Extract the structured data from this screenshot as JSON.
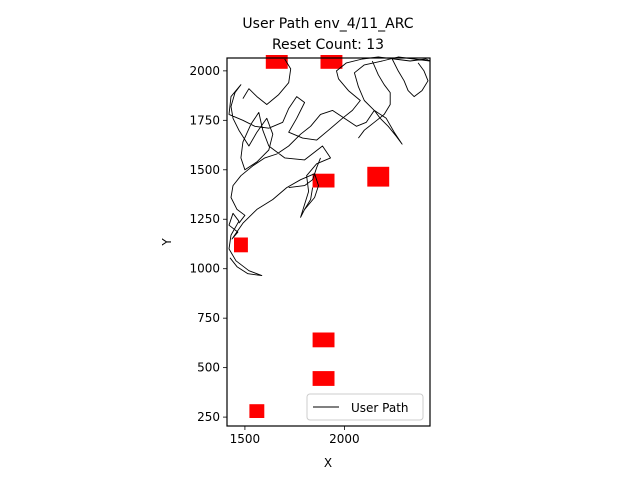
{
  "chart_data": {
    "type": "line",
    "title_line1": "User Path env_4/11_ARC",
    "title_line2": "Reset Count: 13",
    "xlabel": "X",
    "ylabel": "Y",
    "xlim": [
      1410,
      2430
    ],
    "ylim": [
      205,
      2065
    ],
    "x_ticks": [
      1500,
      2000
    ],
    "y_ticks": [
      250,
      500,
      750,
      1000,
      1250,
      1500,
      1750,
      2000
    ],
    "legend": {
      "label": "User Path",
      "placement": "lower-right"
    },
    "colors": {
      "path": "#000000",
      "obstacle": "#ff0000"
    },
    "series": [
      {
        "name": "User Path",
        "strokes": [
          [
            [
              1425,
              1055
            ],
            [
              1460,
              1010
            ],
            [
              1515,
              975
            ],
            [
              1585,
              965
            ],
            [
              1520,
              990
            ],
            [
              1455,
              1040
            ],
            [
              1420,
              1100
            ],
            [
              1430,
              1170
            ],
            [
              1470,
              1240
            ],
            [
              1440,
              1280
            ],
            [
              1420,
              1220
            ],
            [
              1465,
              1185
            ],
            [
              1435,
              1150
            ],
            [
              1490,
              1230
            ],
            [
              1560,
              1300
            ],
            [
              1640,
              1350
            ],
            [
              1710,
              1410
            ],
            [
              1780,
              1450
            ],
            [
              1850,
              1480
            ],
            [
              1870,
              1420
            ],
            [
              1850,
              1360
            ],
            [
              1800,
              1300
            ],
            [
              1780,
              1260
            ],
            [
              1820,
              1390
            ],
            [
              1810,
              1470
            ],
            [
              1860,
              1530
            ],
            [
              1930,
              1560
            ],
            [
              1890,
              1620
            ],
            [
              1800,
              1550
            ],
            [
              1700,
              1560
            ],
            [
              1620,
              1620
            ],
            [
              1590,
              1700
            ],
            [
              1570,
              1790
            ],
            [
              1530,
              1730
            ],
            [
              1490,
              1640
            ],
            [
              1480,
              1560
            ],
            [
              1500,
              1500
            ],
            [
              1560,
              1540
            ],
            [
              1620,
              1600
            ],
            [
              1640,
              1680
            ],
            [
              1610,
              1760
            ],
            [
              1560,
              1690
            ],
            [
              1520,
              1620
            ],
            [
              1470,
              1700
            ],
            [
              1440,
              1760
            ],
            [
              1430,
              1820
            ],
            [
              1450,
              1890
            ],
            [
              1480,
              1930
            ],
            [
              1430,
              1870
            ],
            [
              1420,
              1780
            ],
            [
              1490,
              1750
            ],
            [
              1550,
              1720
            ],
            [
              1620,
              1710
            ],
            [
              1690,
              1740
            ],
            [
              1720,
              1810
            ],
            [
              1760,
              1870
            ],
            [
              1800,
              1840
            ],
            [
              1760,
              1760
            ],
            [
              1720,
              1690
            ],
            [
              1790,
              1660
            ],
            [
              1860,
              1650
            ],
            [
              1920,
              1700
            ],
            [
              1990,
              1760
            ],
            [
              2040,
              1800
            ],
            [
              2080,
              1850
            ],
            [
              2020,
              1900
            ],
            [
              1970,
              1960
            ],
            [
              1960,
              2000
            ],
            [
              2010,
              2040
            ],
            [
              2090,
              2060
            ],
            [
              2170,
              2070
            ],
            [
              2250,
              2060
            ],
            [
              2330,
              2050
            ],
            [
              2410,
              2060
            ],
            [
              2430,
              2050
            ],
            [
              2350,
              2060
            ],
            [
              2270,
              2070
            ],
            [
              2190,
              2050
            ],
            [
              2100,
              2030
            ],
            [
              2050,
              1990
            ],
            [
              2070,
              1920
            ],
            [
              2100,
              1850
            ],
            [
              2150,
              1800
            ],
            [
              2180,
              1760
            ],
            [
              2220,
              1720
            ],
            [
              2260,
              1670
            ],
            [
              2290,
              1630
            ],
            [
              2250,
              1690
            ],
            [
              2210,
              1760
            ],
            [
              2150,
              1800
            ],
            [
              2110,
              1740
            ],
            [
              2060,
              1720
            ],
            [
              2000,
              1760
            ],
            [
              1940,
              1800
            ],
            [
              1880,
              1780
            ],
            [
              1830,
              1720
            ],
            [
              1780,
              1680
            ],
            [
              1720,
              1620
            ],
            [
              1660,
              1580
            ],
            [
              1600,
              1560
            ],
            [
              1540,
              1520
            ],
            [
              1480,
              1470
            ],
            [
              1440,
              1420
            ],
            [
              1430,
              1360
            ],
            [
              1460,
              1300
            ],
            [
              1500,
              1270
            ],
            [
              1470,
              1230
            ]
          ],
          [
            [
              1700,
              2060
            ],
            [
              1730,
              2010
            ],
            [
              1720,
              1940
            ],
            [
              1670,
              1880
            ],
            [
              1610,
              1830
            ],
            [
              1560,
              1870
            ],
            [
              1520,
              1910
            ],
            [
              1490,
              1860
            ]
          ],
          [
            [
              1720,
              1410
            ],
            [
              1800,
              1420
            ],
            [
              1840,
              1450
            ],
            [
              1860,
              1510
            ],
            [
              1880,
              1560
            ]
          ],
          [
            [
              1840,
              1410
            ],
            [
              1830,
              1350
            ],
            [
              1800,
              1300
            ]
          ],
          [
            [
              2140,
              2050
            ],
            [
              2170,
              1980
            ],
            [
              2200,
              1930
            ],
            [
              2230,
              1890
            ],
            [
              2230,
              1830
            ],
            [
              2200,
              1780
            ],
            [
              2150,
              1740
            ],
            [
              2100,
              1700
            ],
            [
              2070,
              1660
            ]
          ],
          [
            [
              2240,
              2060
            ],
            [
              2270,
              2000
            ],
            [
              2300,
              1950
            ],
            [
              2320,
              1900
            ],
            [
              2350,
              1870
            ],
            [
              2390,
              1900
            ],
            [
              2420,
              1950
            ],
            [
              2400,
              2000
            ],
            [
              2370,
              2040
            ]
          ]
        ]
      }
    ],
    "obstacles": [
      {
        "x": 1660,
        "y": 2045,
        "w": 110,
        "h": 70
      },
      {
        "x": 1935,
        "y": 2045,
        "w": 110,
        "h": 70
      },
      {
        "x": 2170,
        "y": 1465,
        "w": 110,
        "h": 100
      },
      {
        "x": 1895,
        "y": 1445,
        "w": 110,
        "h": 70
      },
      {
        "x": 1480,
        "y": 1120,
        "w": 70,
        "h": 75
      },
      {
        "x": 1895,
        "y": 640,
        "w": 110,
        "h": 75
      },
      {
        "x": 1895,
        "y": 445,
        "w": 110,
        "h": 75
      },
      {
        "x": 1560,
        "y": 280,
        "w": 75,
        "h": 70
      }
    ]
  }
}
